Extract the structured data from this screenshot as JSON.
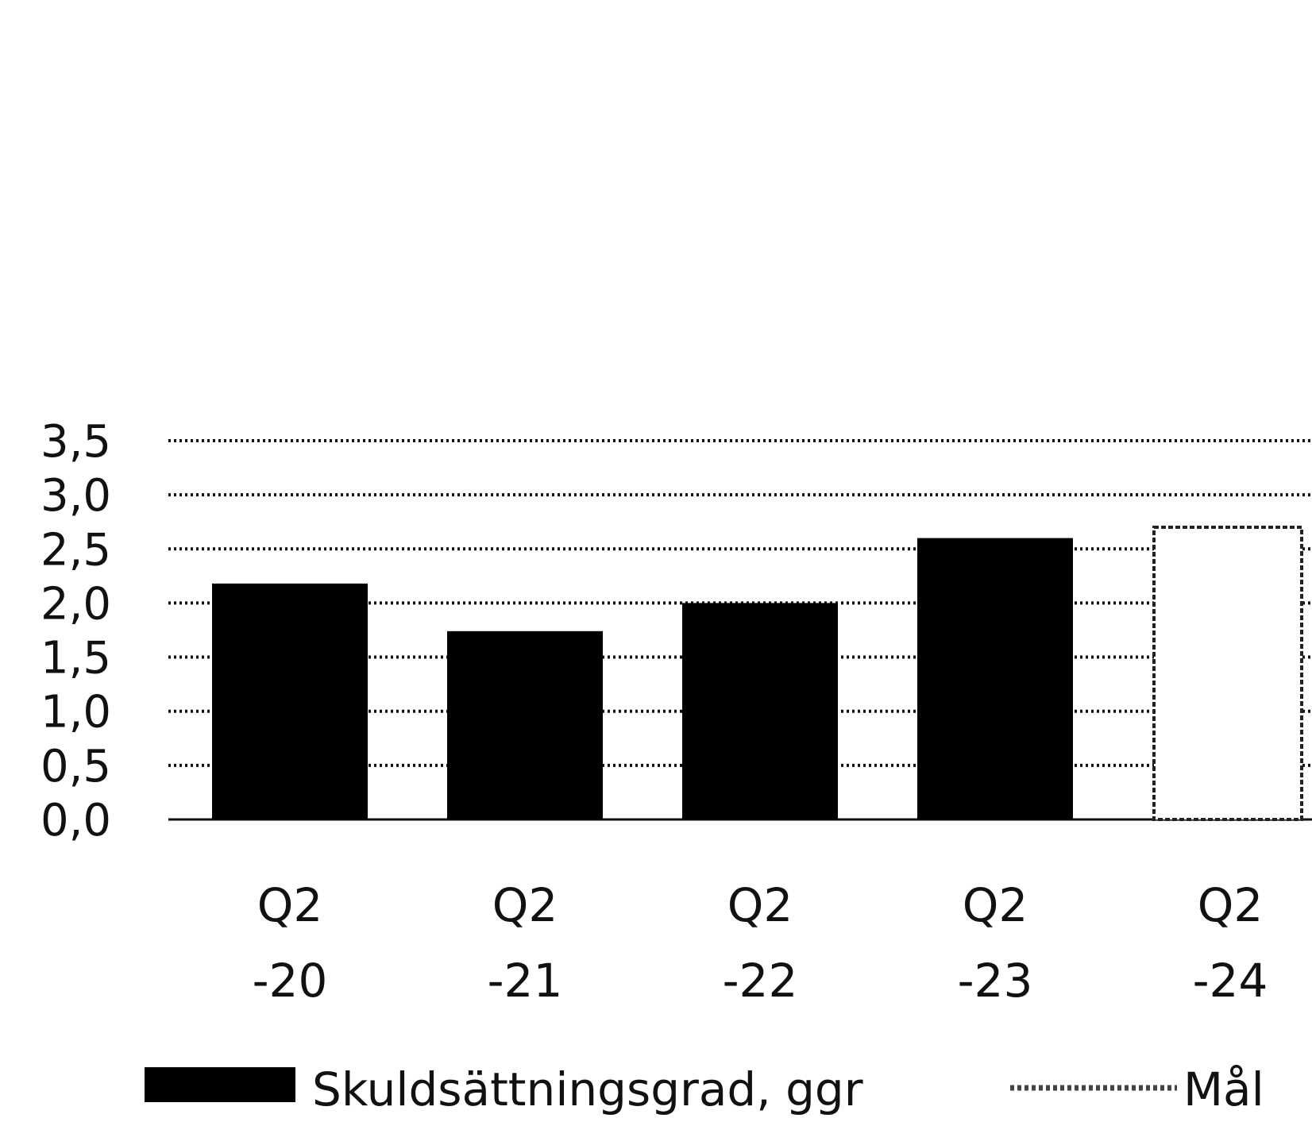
{
  "chart_data": {
    "type": "bar",
    "title": "",
    "xlabel": "",
    "ylabel": "",
    "categories": [
      [
        "Q2",
        "-20"
      ],
      [
        "Q2",
        "-21"
      ],
      [
        "Q2",
        "-22"
      ],
      [
        "Q2",
        "-23"
      ],
      [
        "Q2",
        "-24"
      ]
    ],
    "series": [
      {
        "name": "Skuldsättningsgrad, ggr",
        "values": [
          2.18,
          1.74,
          2.0,
          2.6,
          null
        ],
        "color": "#000000"
      }
    ],
    "target": {
      "name": "Mål",
      "category_index": 4,
      "value": 2.7,
      "style": "dotted-outline"
    },
    "reference_line": {
      "value": 3.0,
      "style": "dotted"
    },
    "yticks": [
      "0,0",
      "0,5",
      "1,0",
      "1,5",
      "2,0",
      "2,5",
      "3,0",
      "3,5"
    ],
    "ylim": [
      0,
      3.5
    ],
    "grid": true,
    "legend": {
      "position": "bottom",
      "items": [
        "Skuldsättningsgrad, ggr",
        "Mål"
      ]
    }
  }
}
